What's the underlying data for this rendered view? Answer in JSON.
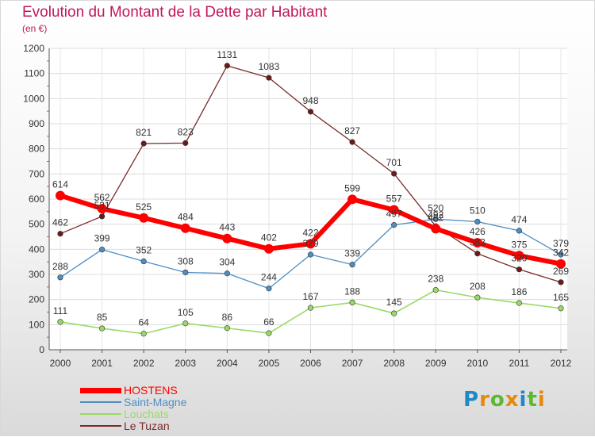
{
  "chart_data": {
    "type": "line",
    "title": "Evolution du Montant de la Dette par Habitant",
    "subtitle": "(en €)",
    "xlabel": "",
    "ylabel": "",
    "x": [
      "2000",
      "2001",
      "2002",
      "2003",
      "2004",
      "2005",
      "2006",
      "2007",
      "2008",
      "2009",
      "2010",
      "2011",
      "2012"
    ],
    "ylim": [
      0,
      1200
    ],
    "yticks": [
      0,
      100,
      200,
      300,
      400,
      500,
      600,
      700,
      800,
      900,
      1000,
      1100,
      1200
    ],
    "grid": true,
    "legend_position": "bottom-left",
    "series": [
      {
        "name": "HOSTENS",
        "color": "#ff0000",
        "values": [
          614,
          562,
          525,
          484,
          443,
          402,
          422,
          599,
          557,
          482,
          426,
          375,
          342
        ]
      },
      {
        "name": "Saint-Magne",
        "color": "#4f8ec4",
        "values": [
          288,
          399,
          352,
          308,
          304,
          244,
          379,
          339,
          497,
          520,
          510,
          474,
          379
        ]
      },
      {
        "name": "Louchats",
        "color": "#99d966",
        "values": [
          111,
          85,
          64,
          105,
          86,
          66,
          167,
          188,
          145,
          238,
          208,
          186,
          165
        ]
      },
      {
        "name": "Le Tuzan",
        "color": "#7a2a2a",
        "values": [
          462,
          531,
          821,
          823,
          1131,
          1083,
          948,
          827,
          701,
          492,
          383,
          320,
          269
        ]
      }
    ]
  },
  "brand": {
    "letters": [
      "P",
      "r",
      "o",
      "x",
      "i",
      "t",
      "i"
    ],
    "colors": [
      "#1e88c8",
      "#e8890c",
      "#5cb832",
      "#e8890c",
      "#1e88c8",
      "#5cb832",
      "#e8890c"
    ]
  }
}
